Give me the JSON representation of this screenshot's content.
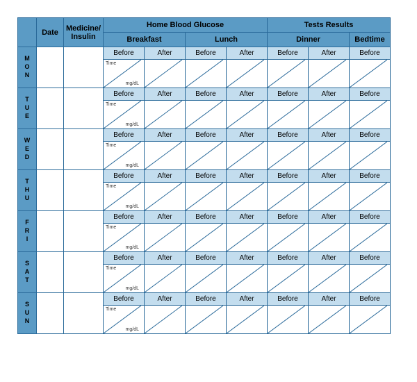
{
  "type": "table",
  "title_left": "Home Blood Glucose",
  "title_right": "Tests Results",
  "col_headers": {
    "date": "Date",
    "medicine": "Medicine/\nInsulin",
    "meals": [
      "Breakfast",
      "Lunch",
      "Dinner",
      "Bedtime"
    ],
    "sub": [
      "Before",
      "After"
    ]
  },
  "cell_labels": {
    "time": "Time",
    "unit": "mg/dL"
  },
  "days": [
    "MON",
    "TUE",
    "WED",
    "THU",
    "FRI",
    "SAT",
    "SUN"
  ],
  "colors": {
    "border": "#2a6a9a",
    "hdr_dark": "#5b9bc5",
    "hdr_light": "#c3ddee",
    "bg": "#ffffff"
  },
  "font_sizes": {
    "title": 11,
    "header": 10,
    "cell_label": 7,
    "day": 9
  }
}
